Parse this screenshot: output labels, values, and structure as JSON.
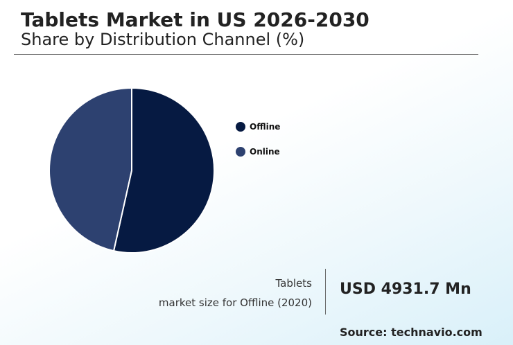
{
  "header": {
    "title": "Tablets Market in US 2026-2030",
    "subtitle": "Share by Distribution Channel (%)"
  },
  "chart_data": {
    "type": "pie",
    "categories": [
      "Offline",
      "Online"
    ],
    "values": [
      53.5,
      46.5
    ],
    "colors": [
      "#061a42",
      "#2d4170"
    ],
    "start_angle_deg": 0,
    "direction": "clockwise",
    "legend_position": "right"
  },
  "stat": {
    "label_line1": "Tablets",
    "label_line2": "market size for Offline (2020)",
    "value": "USD 4931.7 Mn"
  },
  "source": "Source: technavio.com"
}
